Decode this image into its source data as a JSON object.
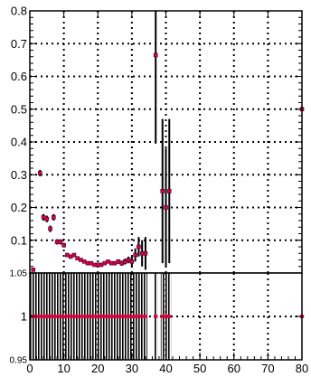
{
  "chart_data": [
    {
      "type": "scatter",
      "panel": "top",
      "grid": true,
      "xlim": [
        0,
        80
      ],
      "ylim": [
        0,
        0.8
      ],
      "x_ticks": [
        0,
        10,
        20,
        30,
        40,
        50,
        60,
        70,
        80
      ],
      "y_tick_labels": [
        "0.8",
        "0.7",
        "0.6",
        "0.5",
        "0.4",
        "0.3",
        "0.2",
        "0.1",
        "0"
      ],
      "y_ticks": [
        0.8,
        0.7,
        0.6,
        0.5,
        0.4,
        0.3,
        0.2,
        0.1,
        0.0
      ],
      "marker_color": "#e0003c",
      "points": [
        {
          "x": 1,
          "y": 0.01,
          "err": 0.0
        },
        {
          "x": 3,
          "y": 0.305,
          "err": 0.01
        },
        {
          "x": 4,
          "y": 0.17,
          "err": 0.01
        },
        {
          "x": 5,
          "y": 0.165,
          "err": 0.01
        },
        {
          "x": 6,
          "y": 0.135,
          "err": 0.01
        },
        {
          "x": 7,
          "y": 0.17,
          "err": 0.01
        },
        {
          "x": 8,
          "y": 0.095,
          "err": 0.008
        },
        {
          "x": 9,
          "y": 0.095,
          "err": 0.008
        },
        {
          "x": 10,
          "y": 0.085,
          "err": 0.007
        },
        {
          "x": 11,
          "y": 0.055,
          "err": 0.006
        },
        {
          "x": 12,
          "y": 0.05,
          "err": 0.006
        },
        {
          "x": 13,
          "y": 0.055,
          "err": 0.006
        },
        {
          "x": 14,
          "y": 0.045,
          "err": 0.005
        },
        {
          "x": 15,
          "y": 0.04,
          "err": 0.005
        },
        {
          "x": 16,
          "y": 0.035,
          "err": 0.005
        },
        {
          "x": 17,
          "y": 0.03,
          "err": 0.005
        },
        {
          "x": 18,
          "y": 0.03,
          "err": 0.005
        },
        {
          "x": 19,
          "y": 0.025,
          "err": 0.005
        },
        {
          "x": 20,
          "y": 0.025,
          "err": 0.005
        },
        {
          "x": 21,
          "y": 0.025,
          "err": 0.005
        },
        {
          "x": 22,
          "y": 0.03,
          "err": 0.005
        },
        {
          "x": 23,
          "y": 0.035,
          "err": 0.006
        },
        {
          "x": 24,
          "y": 0.03,
          "err": 0.006
        },
        {
          "x": 25,
          "y": 0.03,
          "err": 0.006
        },
        {
          "x": 26,
          "y": 0.035,
          "err": 0.007
        },
        {
          "x": 27,
          "y": 0.03,
          "err": 0.008
        },
        {
          "x": 28,
          "y": 0.035,
          "err": 0.009
        },
        {
          "x": 29,
          "y": 0.04,
          "err": 0.01
        },
        {
          "x": 30,
          "y": 0.035,
          "err": 0.015
        },
        {
          "x": 31,
          "y": 0.055,
          "err": 0.02
        },
        {
          "x": 32,
          "y": 0.08,
          "err": 0.03
        },
        {
          "x": 33,
          "y": 0.06,
          "err": 0.04
        },
        {
          "x": 34,
          "y": 0.06,
          "err": 0.05
        },
        {
          "x": 37,
          "y": 0.665,
          "err": 0.27
        },
        {
          "x": 39,
          "y": 0.25,
          "err": 0.22
        },
        {
          "x": 40,
          "y": 0.2,
          "err": 0.18
        },
        {
          "x": 41,
          "y": 0.25,
          "err": 0.22
        },
        {
          "x": 80,
          "y": 0.5,
          "err": 0.0
        }
      ]
    },
    {
      "type": "scatter",
      "panel": "ratio",
      "grid": true,
      "xlim": [
        0,
        80
      ],
      "ylim": [
        0.95,
        1.05
      ],
      "x_ticks": [
        0,
        10,
        20,
        30,
        40,
        50,
        60,
        70,
        80
      ],
      "x_tick_labels": [
        "0",
        "10",
        "20",
        "30",
        "40",
        "50",
        "60",
        "70",
        "80"
      ],
      "y_tick_labels": [
        "1.05",
        "1",
        "0.95"
      ],
      "y_ticks": [
        1.05,
        1.0,
        0.95
      ],
      "marker_color": "#e0003c",
      "points_x": [
        1,
        2,
        3,
        4,
        5,
        6,
        7,
        8,
        9,
        10,
        11,
        12,
        13,
        14,
        15,
        16,
        17,
        18,
        19,
        20,
        21,
        22,
        23,
        24,
        25,
        26,
        27,
        28,
        29,
        30,
        31,
        32,
        33,
        34,
        37,
        39,
        40,
        41,
        80
      ],
      "value": 1.0,
      "hatched_ranges": [
        [
          0,
          34.5
        ],
        [
          36.5,
          37.5
        ],
        [
          38.5,
          41.5
        ]
      ]
    }
  ]
}
